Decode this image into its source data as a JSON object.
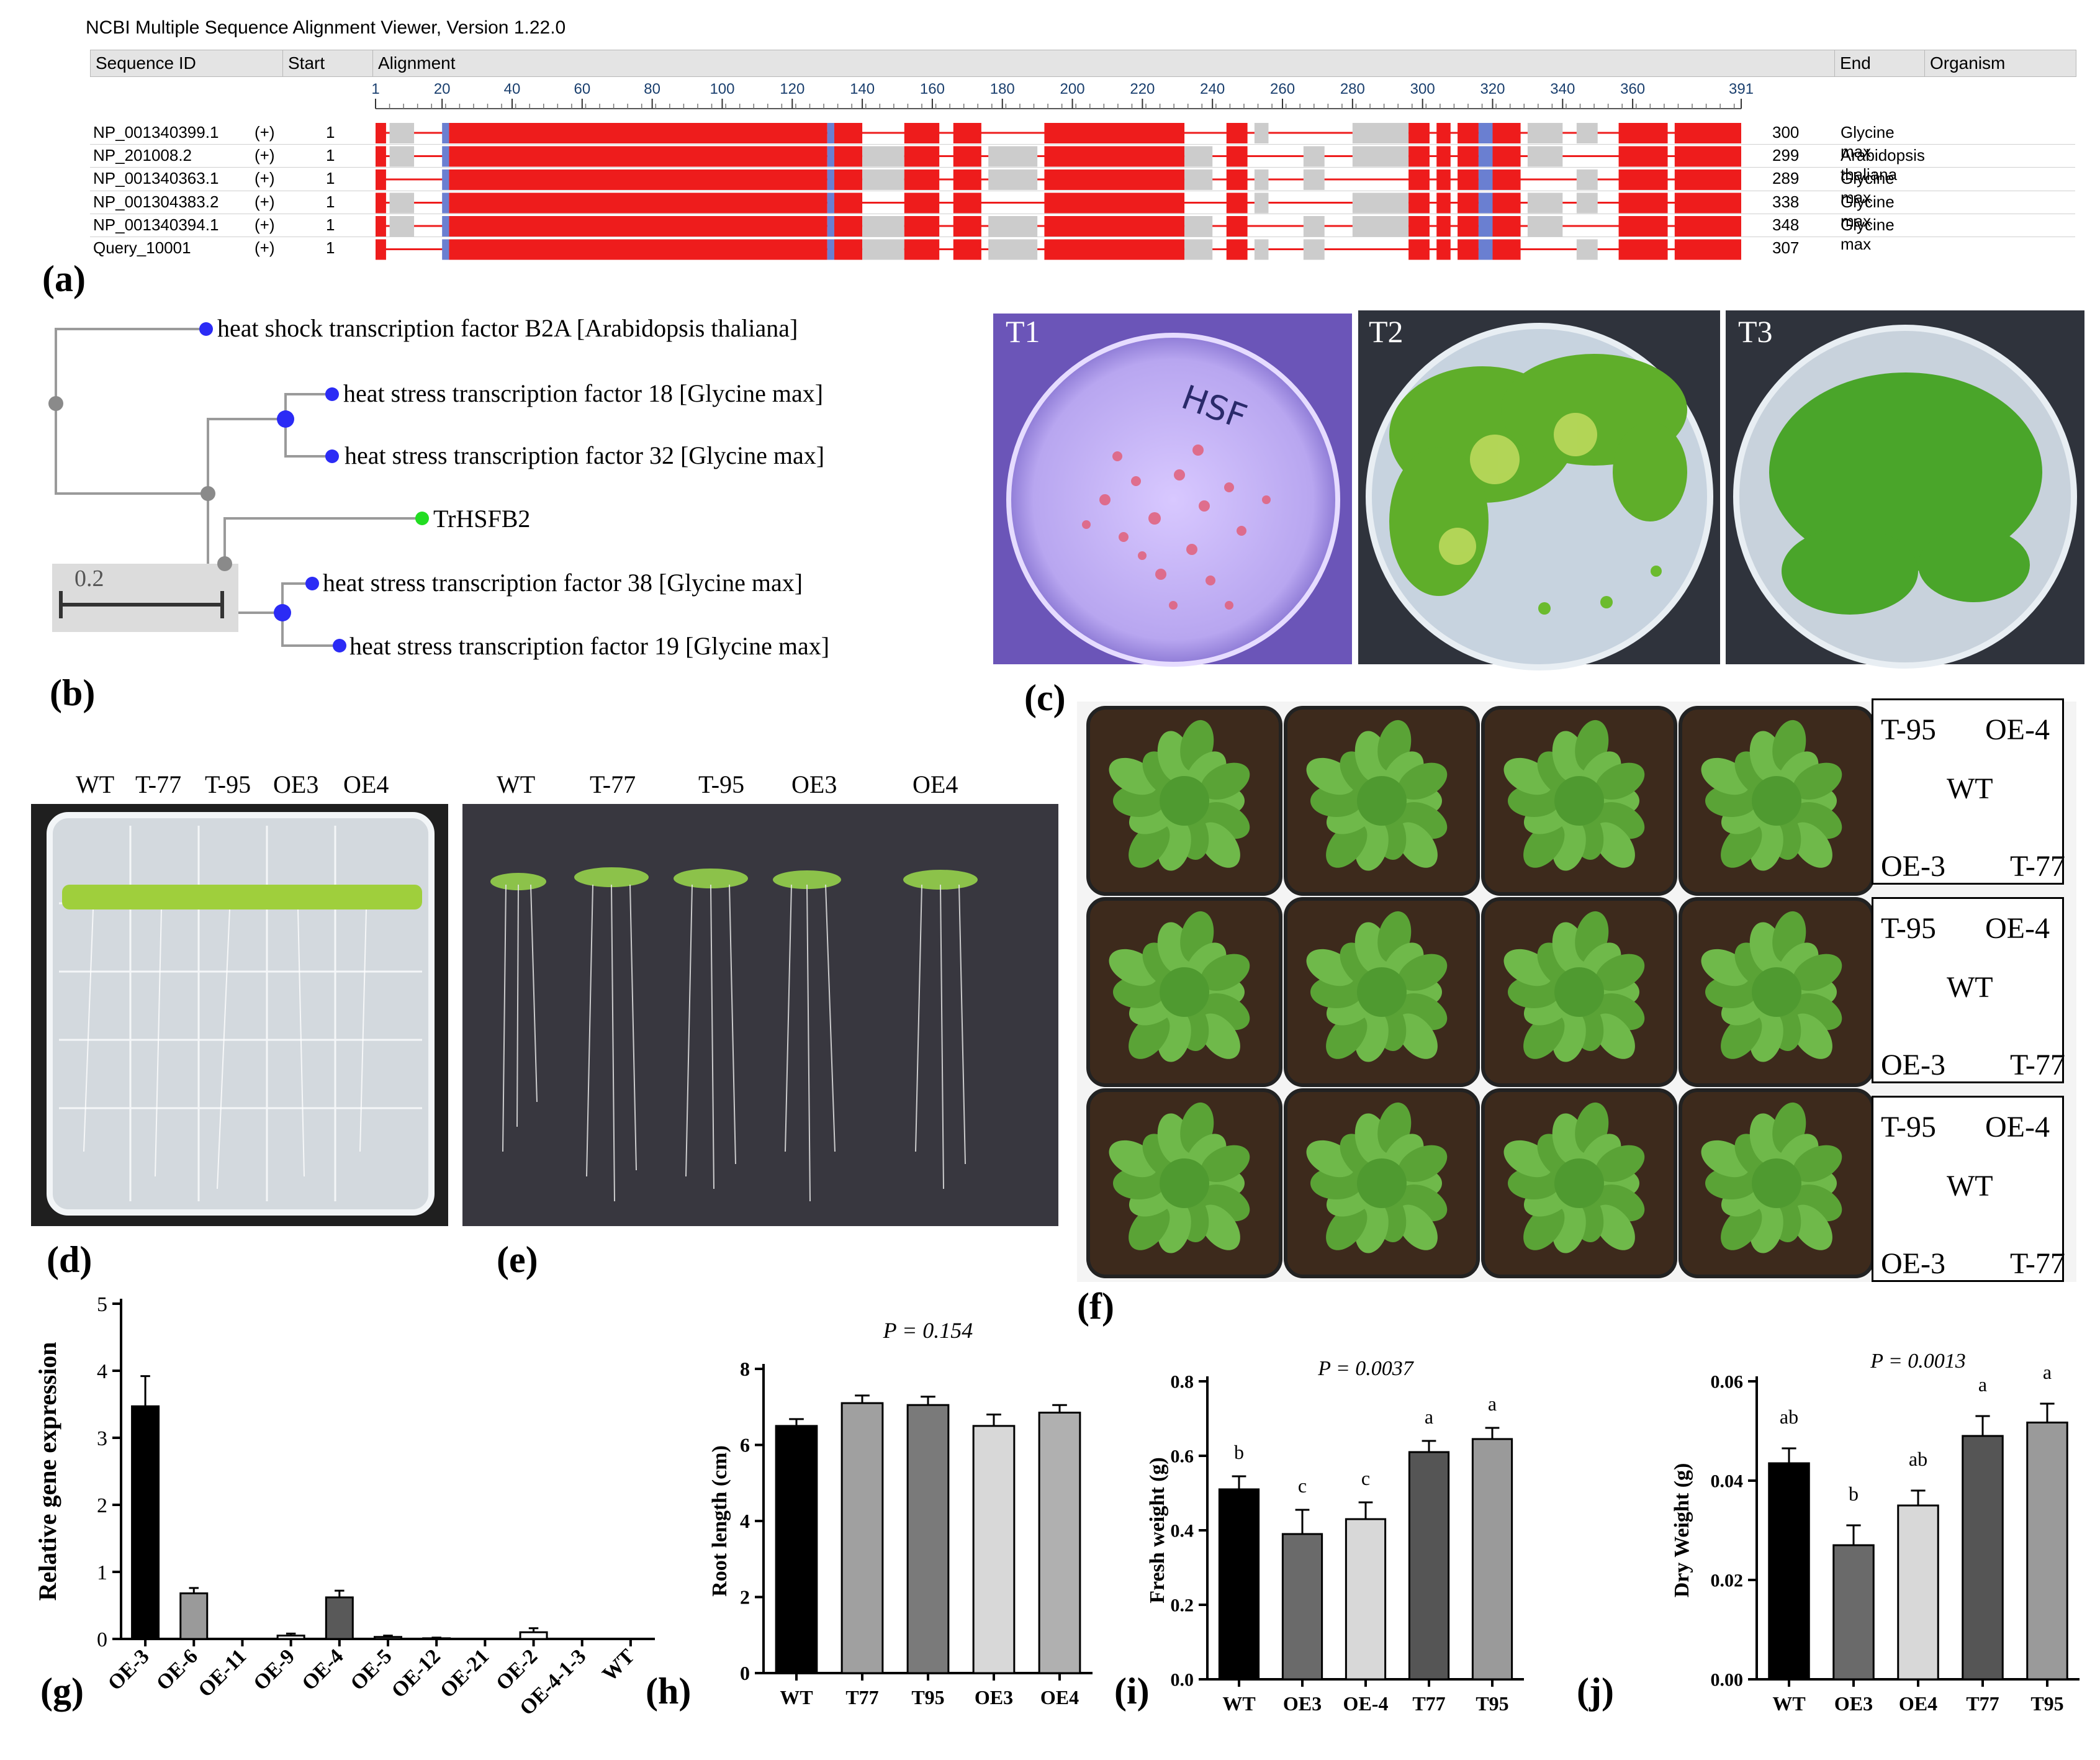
{
  "colors": {
    "msa_red": "#ee1c1c",
    "msa_grey": "#cccccc",
    "msa_blue": "#6a7fd1",
    "node_blue": "#2b2bf5",
    "node_grey": "#8a8a8a",
    "node_green": "#22dd22"
  },
  "panels": {
    "a": "(a)",
    "b": "(b)",
    "c": "(c)",
    "d": "(d)",
    "e": "(e)",
    "f": "(f)",
    "g": "(g)",
    "h": "(h)",
    "i": "(i)",
    "j": "(j)"
  },
  "msa": {
    "title": "NCBI Multiple Sequence Alignment Viewer, Version 1.22.0",
    "headers": {
      "sequence_id": "Sequence ID",
      "start": "Start",
      "alignment": "Alignment",
      "end": "End",
      "organism": "Organism"
    },
    "ruler_ticks": [
      "1",
      "20",
      "40",
      "60",
      "80",
      "100",
      "120",
      "140",
      "160",
      "180",
      "200",
      "220",
      "240",
      "260",
      "280",
      "300",
      "320",
      "340",
      "360",
      "391"
    ],
    "rows": [
      {
        "id": "NP_001340399.1",
        "strand": "(+)",
        "start": "1",
        "end": "300",
        "organism": "Glycine max"
      },
      {
        "id": "NP_201008.2",
        "strand": "(+)",
        "start": "1",
        "end": "299",
        "organism": "Arabidopsis thaliana"
      },
      {
        "id": "NP_001340363.1",
        "strand": "(+)",
        "start": "1",
        "end": "289",
        "organism": "Glycine max"
      },
      {
        "id": "NP_001304383.2",
        "strand": "(+)",
        "start": "1",
        "end": "338",
        "organism": "Glycine max"
      },
      {
        "id": "NP_001340394.1",
        "strand": "(+)",
        "start": "1",
        "end": "348",
        "organism": "Glycine max"
      },
      {
        "id": "Query_10001",
        "strand": "(+)",
        "start": "1",
        "end": "307",
        "organism": ""
      }
    ]
  },
  "tree": {
    "leaves": [
      "heat shock transcription factor B2A [Arabidopsis thaliana]",
      "heat stress transcription factor 18 [Glycine max]",
      "heat stress transcription factor 32 [Glycine max]",
      "TrHSFB2",
      "heat stress transcription factor 38 [Glycine max]",
      "heat stress transcription factor 19 [Glycine max]"
    ],
    "scale_label": "0.2"
  },
  "plates_c": {
    "t1": "T1",
    "t2": "T2",
    "t3": "T3",
    "plate_writing": "HSF"
  },
  "seedlings_d": {
    "labels": [
      "WT",
      "T-77",
      "T-95",
      "OE3",
      "OE4"
    ]
  },
  "seedlings_e": {
    "labels": [
      "WT",
      "T-77",
      "T-95",
      "OE3",
      "OE4"
    ]
  },
  "layout_f": {
    "boxes": [
      {
        "tl": "T-95",
        "tr": "OE-4",
        "center": "WT",
        "bl": "OE-3",
        "br": "T-77"
      },
      {
        "tl": "T-95",
        "tr": "OE-4",
        "center": "WT",
        "bl": "OE-3",
        "br": "T-77"
      },
      {
        "tl": "T-95",
        "tr": "OE-4",
        "center": "WT",
        "bl": "OE-3",
        "br": "T-77"
      }
    ]
  },
  "chart_data": [
    {
      "type": "bar",
      "panel": "g",
      "ylabel": "Relative gene expression",
      "categories": [
        "OE-3",
        "OE-6",
        "OE-11",
        "OE-9",
        "OE-4",
        "OE-5",
        "OE-12",
        "OE-21",
        "OE-2",
        "OE-4-1-3",
        "WT"
      ],
      "values": [
        3.47,
        0.68,
        0.0,
        0.05,
        0.62,
        0.03,
        0.01,
        0.0,
        0.1,
        0.0,
        0.0
      ],
      "errors": [
        0.45,
        0.08,
        0.0,
        0.03,
        0.1,
        0.02,
        0.01,
        0.0,
        0.06,
        0.0,
        0.0
      ],
      "fills": [
        "#000000",
        "#9a9a9a",
        "#ffffff",
        "#ffffff",
        "#595959",
        "#ffffff",
        "#ffffff",
        "#ffffff",
        "#ffffff",
        "#ffffff",
        "#ffffff"
      ],
      "ylim": [
        0,
        5
      ],
      "yticks": [
        "0",
        "1",
        "2",
        "3",
        "4",
        "5"
      ]
    },
    {
      "type": "bar",
      "panel": "h",
      "title": "P = 0.154",
      "ylabel": "Root length (cm)",
      "categories": [
        "WT",
        "T77",
        "T95",
        "OE3",
        "OE4"
      ],
      "values": [
        6.5,
        7.1,
        7.05,
        6.5,
        6.85
      ],
      "errors": [
        0.18,
        0.2,
        0.22,
        0.3,
        0.2
      ],
      "fills": [
        "#000000",
        "#a0a0a0",
        "#7a7a7a",
        "#d8d8d8",
        "#b0b0b0"
      ],
      "ylim": [
        0,
        8
      ],
      "yticks": [
        "0",
        "2",
        "4",
        "6",
        "8"
      ]
    },
    {
      "type": "bar",
      "panel": "i",
      "title": "P = 0.0037",
      "ylabel": "Fresh weight (g)",
      "categories": [
        "WT",
        "OE3",
        "OE-4",
        "T77",
        "T95"
      ],
      "values": [
        0.51,
        0.39,
        0.43,
        0.61,
        0.645
      ],
      "errors": [
        0.035,
        0.065,
        0.045,
        0.03,
        0.03
      ],
      "letters": [
        "b",
        "c",
        "c",
        "a",
        "a"
      ],
      "fills": [
        "#000000",
        "#6a6a6a",
        "#d8d8d8",
        "#555555",
        "#9a9a9a"
      ],
      "ylim": [
        0,
        0.8
      ],
      "yticks": [
        "0.0",
        "0.2",
        "0.4",
        "0.6",
        "0.8"
      ]
    },
    {
      "type": "bar",
      "panel": "j",
      "title": "P = 0.0013",
      "ylabel": "Dry Weight (g)",
      "categories": [
        "WT",
        "OE3",
        "OE4",
        "T77",
        "T95"
      ],
      "values": [
        0.0435,
        0.027,
        0.035,
        0.049,
        0.0517
      ],
      "errors": [
        0.003,
        0.004,
        0.003,
        0.004,
        0.0038
      ],
      "letters": [
        "ab",
        "b",
        "ab",
        "a",
        "a"
      ],
      "fills": [
        "#000000",
        "#6a6a6a",
        "#d8d8d8",
        "#555555",
        "#9a9a9a"
      ],
      "ylim": [
        0,
        0.06
      ],
      "yticks": [
        "0.00",
        "0.02",
        "0.04",
        "0.06"
      ]
    }
  ]
}
